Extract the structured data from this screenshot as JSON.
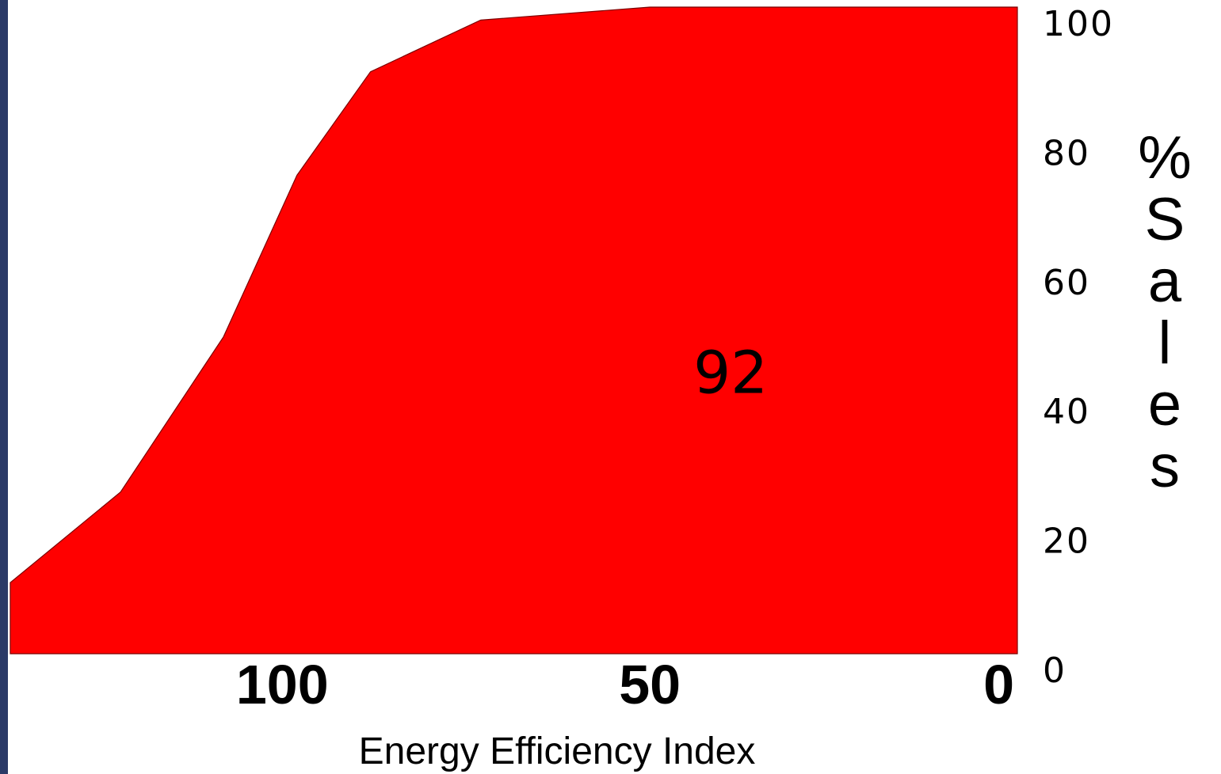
{
  "chart_data": {
    "type": "area",
    "title": "",
    "xlabel": "Energy Efficiency Index",
    "ylabel": "%Sales",
    "x_axis_reversed": true,
    "xlim": [
      0,
      137
    ],
    "ylim": [
      0,
      100
    ],
    "x_ticks": [
      {
        "value": 100,
        "label": "100"
      },
      {
        "value": 50,
        "label": "50"
      },
      {
        "value": 0,
        "label": "0"
      }
    ],
    "y_ticks": [
      {
        "value": 0,
        "label": "0"
      },
      {
        "value": 20,
        "label": "20"
      },
      {
        "value": 40,
        "label": "40"
      },
      {
        "value": 60,
        "label": "60"
      },
      {
        "value": 80,
        "label": "80"
      },
      {
        "value": 100,
        "label": "100"
      }
    ],
    "y_axis_side": "right",
    "grid": false,
    "series": [
      {
        "color": "#ff0000",
        "x": [
          137,
          122,
          108,
          98,
          88,
          73,
          50,
          0
        ],
        "y": [
          11,
          25,
          49,
          74,
          90,
          98,
          100,
          100
        ]
      }
    ],
    "annotations": [
      {
        "text": "92",
        "x": 39,
        "y": 43
      }
    ]
  },
  "theme": {
    "background": "#ffffff",
    "fill": "#ff0000",
    "left_border": "#2b3a67"
  }
}
